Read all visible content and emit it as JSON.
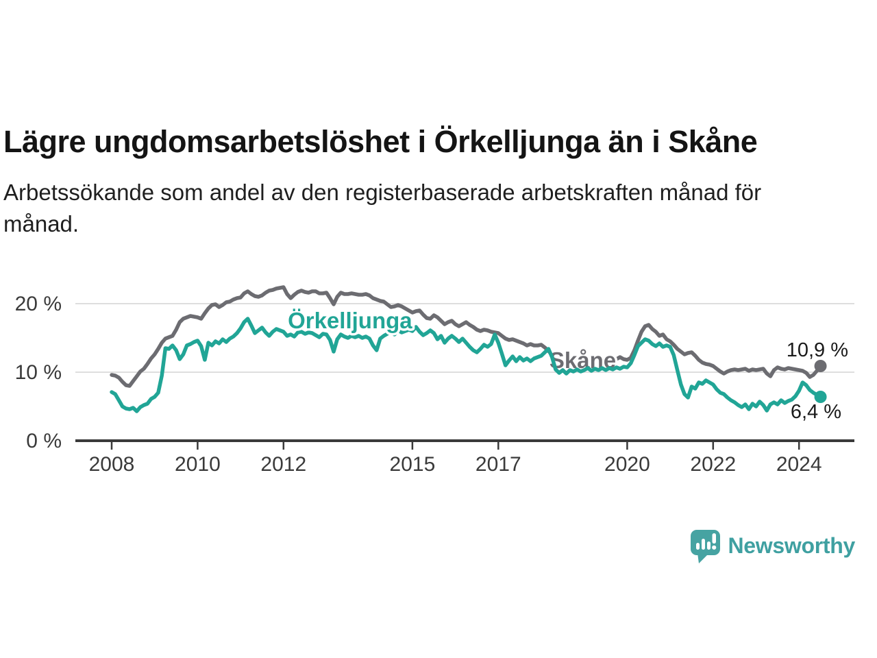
{
  "header": {
    "title": "Lägre ungdomsarbetslöshet i Örkelljunga än i Skåne",
    "subtitle_lines": [
      "Arbetssökande som andel av den registerbaserade arbetskraften månad för",
      "månad."
    ]
  },
  "footer": {
    "brand": "Newsworthy",
    "brand_color": "#3fa0a1",
    "icon_color": "#46a3a2"
  },
  "colors": {
    "title_text": "#141414",
    "axis_text": "#3a3a3a",
    "grid": "#dedede",
    "axis": "#3a3a3a"
  },
  "chart_data": {
    "type": "line",
    "title": "Lägre ungdomsarbetslöshet i Örkelljunga än i Skåne",
    "subtitle": "Arbetssökande som andel av den registerbaserade arbetskraften månad för månad.",
    "unit": "%",
    "xlabel": "",
    "ylabel": "",
    "grid": "horizontal",
    "legend_position": "inline-labels",
    "xlim": [
      2007.15,
      2025.3
    ],
    "ylim": [
      0,
      24
    ],
    "x_start_year": 2008.0,
    "x_step_months": 1,
    "x_ticks": [
      {
        "year": 2008,
        "label": "2008"
      },
      {
        "year": 2010,
        "label": "2010"
      },
      {
        "year": 2012,
        "label": "2012"
      },
      {
        "year": 2015,
        "label": "2015"
      },
      {
        "year": 2017,
        "label": "2017"
      },
      {
        "year": 2020,
        "label": "2020"
      },
      {
        "year": 2022,
        "label": "2022"
      },
      {
        "year": 2024,
        "label": "2024"
      }
    ],
    "y_ticks": [
      {
        "value": 0,
        "label": "0 %"
      },
      {
        "value": 10,
        "label": "10 %"
      },
      {
        "value": 20,
        "label": "20 %"
      }
    ],
    "series": [
      {
        "name": "Skåne",
        "color": "#6c6c71",
        "end_label": "10,9 %",
        "end_value": 10.9,
        "label_anchor": {
          "year": 2018.19,
          "pct": 10.6
        },
        "values": [
          9.6,
          9.5,
          9.2,
          8.6,
          8.1,
          8.0,
          8.7,
          9.4,
          10.1,
          10.5,
          11.2,
          12.0,
          12.6,
          13.4,
          14.3,
          14.9,
          15.1,
          15.3,
          16.2,
          17.3,
          17.8,
          18.0,
          18.2,
          18.1,
          18.0,
          17.8,
          18.6,
          19.3,
          19.8,
          19.9,
          19.5,
          19.8,
          20.2,
          20.3,
          20.6,
          20.8,
          20.9,
          21.5,
          21.8,
          21.4,
          21.1,
          21.0,
          21.2,
          21.6,
          21.9,
          22.0,
          22.2,
          22.3,
          22.4,
          21.4,
          20.8,
          21.3,
          21.7,
          21.9,
          21.7,
          21.6,
          21.8,
          21.8,
          21.5,
          21.5,
          21.6,
          20.8,
          19.9,
          21.0,
          21.6,
          21.4,
          21.4,
          21.5,
          21.4,
          21.3,
          21.3,
          21.4,
          21.2,
          20.8,
          20.6,
          20.4,
          20.3,
          19.9,
          19.5,
          19.6,
          19.8,
          19.6,
          19.3,
          19.0,
          18.7,
          18.9,
          19.0,
          18.4,
          17.9,
          17.8,
          18.3,
          18.0,
          17.5,
          17.0,
          17.3,
          17.5,
          17.0,
          16.7,
          17.0,
          17.3,
          16.9,
          16.6,
          16.2,
          16.0,
          16.2,
          16.1,
          15.9,
          15.8,
          15.7,
          15.3,
          14.9,
          14.7,
          14.8,
          14.6,
          14.4,
          14.2,
          13.9,
          14.1,
          13.9,
          13.9,
          14.0,
          13.6,
          13.1,
          12.5,
          12.1,
          11.5,
          10.9,
          10.8,
          11.1,
          11.3,
          11.2,
          11.1,
          11.2,
          11.4,
          11.3,
          11.2,
          11.4,
          11.5,
          11.6,
          11.5,
          11.7,
          11.9,
          12.2,
          11.9,
          11.8,
          12.1,
          13.2,
          14.6,
          15.9,
          16.7,
          16.9,
          16.3,
          15.9,
          15.3,
          15.5,
          14.8,
          14.5,
          14.0,
          13.4,
          13.0,
          12.6,
          12.8,
          12.9,
          12.4,
          11.8,
          11.4,
          11.2,
          11.1,
          10.9,
          10.5,
          10.1,
          9.8,
          10.1,
          10.3,
          10.4,
          10.3,
          10.4,
          10.5,
          10.2,
          10.4,
          10.3,
          10.4,
          10.5,
          9.8,
          9.4,
          10.3,
          10.7,
          10.5,
          10.4,
          10.6,
          10.5,
          10.4,
          10.3,
          10.2,
          9.9,
          9.3,
          9.6,
          10.2,
          10.9
        ]
      },
      {
        "name": "Örkelljunga",
        "color": "#21a596",
        "end_label": "6,4 %",
        "end_value": 6.4,
        "label_anchor": {
          "year": 2012.1,
          "pct": 16.4
        },
        "values": [
          7.1,
          6.8,
          5.9,
          5.0,
          4.7,
          4.6,
          4.8,
          4.3,
          4.9,
          5.2,
          5.4,
          6.1,
          6.4,
          7.0,
          9.5,
          13.5,
          13.4,
          13.9,
          13.2,
          11.9,
          12.6,
          13.9,
          14.1,
          14.4,
          14.6,
          13.8,
          11.8,
          14.3,
          13.9,
          14.5,
          14.2,
          14.8,
          14.4,
          14.9,
          15.2,
          15.7,
          16.4,
          17.3,
          17.8,
          16.8,
          15.7,
          16.1,
          16.5,
          15.8,
          15.3,
          15.9,
          16.3,
          16.1,
          15.9,
          15.3,
          15.5,
          15.2,
          15.8,
          15.9,
          15.6,
          15.8,
          15.7,
          15.4,
          15.1,
          15.6,
          15.5,
          14.7,
          13.0,
          14.8,
          15.5,
          15.2,
          15.0,
          15.3,
          15.1,
          15.3,
          15.0,
          15.2,
          14.9,
          13.9,
          13.2,
          14.9,
          15.3,
          15.6,
          15.9,
          15.5,
          16.1,
          15.8,
          16.0,
          16.2,
          16.0,
          16.6,
          15.9,
          15.4,
          15.7,
          16.1,
          15.7,
          14.8,
          15.3,
          14.3,
          14.9,
          15.3,
          14.9,
          14.4,
          14.9,
          14.3,
          13.7,
          13.2,
          12.9,
          13.4,
          14.0,
          13.7,
          14.1,
          15.5,
          14.3,
          12.7,
          11.0,
          11.7,
          12.3,
          11.6,
          12.2,
          11.7,
          12.0,
          11.6,
          12.0,
          12.2,
          12.4,
          12.9,
          13.4,
          12.2,
          10.4,
          9.9,
          10.3,
          9.8,
          10.3,
          10.1,
          10.4,
          10.1,
          10.3,
          10.6,
          10.2,
          10.5,
          10.3,
          10.6,
          10.3,
          10.6,
          10.4,
          10.7,
          10.5,
          10.8,
          10.7,
          11.3,
          12.5,
          13.8,
          14.3,
          14.8,
          14.6,
          14.1,
          13.8,
          14.2,
          13.7,
          13.9,
          13.7,
          12.5,
          10.3,
          8.2,
          6.8,
          6.3,
          7.9,
          7.6,
          8.5,
          8.3,
          8.8,
          8.5,
          8.2,
          7.5,
          7.0,
          6.8,
          6.3,
          5.9,
          5.6,
          5.2,
          4.9,
          5.3,
          4.6,
          5.4,
          5.0,
          5.7,
          5.2,
          4.4,
          5.3,
          5.6,
          5.3,
          5.9,
          5.5,
          5.8,
          6.0,
          6.5,
          7.3,
          8.5,
          8.1,
          7.4,
          7.0,
          6.7,
          6.4
        ]
      }
    ]
  }
}
